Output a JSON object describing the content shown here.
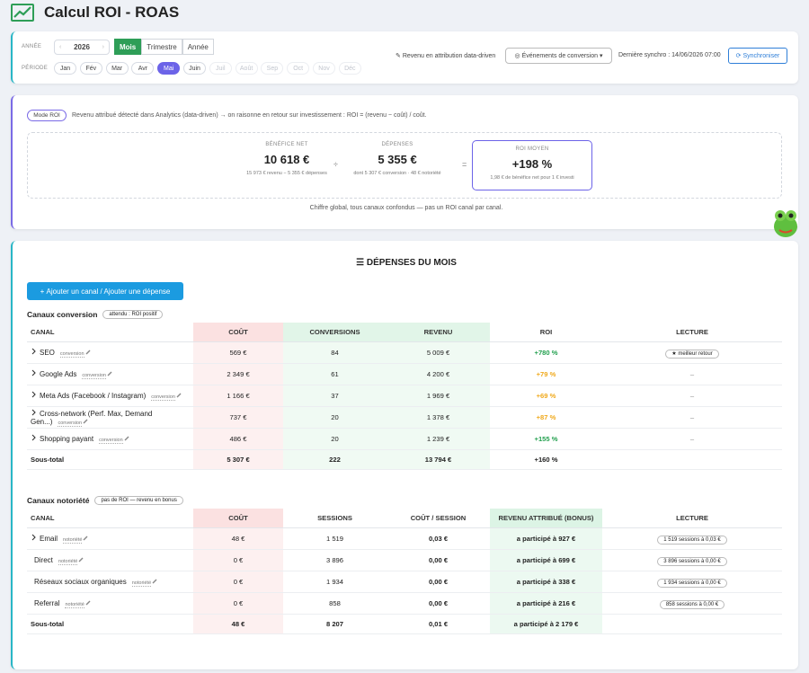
{
  "header": {
    "title": "Calcul ROI - ROAS"
  },
  "filters": {
    "year_label": "ANNÉE",
    "year": "2026",
    "prev": "‹",
    "next": "›",
    "period_label": "PÉRIODE",
    "modes": [
      "Mois",
      "Trimestre",
      "Année"
    ],
    "active_mode": 0,
    "months": [
      "Jan",
      "Fév",
      "Mar",
      "Avr",
      "Mai",
      "Juin",
      "Juil",
      "Août",
      "Sep",
      "Oct",
      "Nov",
      "Déc"
    ],
    "active_month": 4,
    "available_months": 6,
    "attribution": "Revenu en attribution data-driven",
    "events_dropdown": "Événements de conversion",
    "sync_info": "Dernière synchro : 14/06/2026 07:00",
    "sync_button": "Synchroniser"
  },
  "roi": {
    "badge": "Mode ROI",
    "description": "Revenu attribué détecté dans Analytics (data-driven) → on raisonne en retour sur investissement : ROI = (revenu − coût) / coût.",
    "cards": [
      {
        "label": "BÉNÉFICE NET",
        "value": "10 618 €",
        "note": "15 973 € revenu − 5 355 € dépenses"
      },
      {
        "label": "DÉPENSES",
        "value": "5 355 €",
        "note": "dont 5 307 € conversion · 48 € notoriété"
      },
      {
        "label": "ROI MOYEN",
        "value": "+198 %",
        "note": "1,98 € de bénéfice net pour 1 € investi"
      }
    ],
    "operators": [
      "÷",
      "="
    ],
    "footnote": "Chiffre global, tous canaux confondus — pas un ROI canal par canal."
  },
  "expenses": {
    "title": "DÉPENSES DU MOIS",
    "add_button": "Ajouter un canal / Ajouter une dépense",
    "conversion": {
      "title": "Canaux conversion",
      "badge": "attendu : ROI positif",
      "headers": [
        "CANAL",
        "COÛT",
        "CONVERSIONS",
        "REVENU",
        "ROI",
        "LECTURE"
      ],
      "rows": [
        {
          "channel": "SEO",
          "tag": "conversion",
          "expandable": true,
          "cells": [
            "569 €",
            "84",
            "5 009 €",
            "+780 %",
            "★ meilleur retour"
          ],
          "roi_color": "#23a04f",
          "lecture_badge": true
        },
        {
          "channel": "Google Ads",
          "tag": "conversion",
          "expandable": true,
          "cells": [
            "2 349 €",
            "61",
            "4 200 €",
            "+79 %",
            "–"
          ],
          "roi_color": "#f0a91c",
          "lecture_badge": false
        },
        {
          "channel": "Meta Ads (Facebook / Instagram)",
          "tag": "conversion",
          "expandable": true,
          "cells": [
            "1 166 €",
            "37",
            "1 969 €",
            "+69 %",
            "–"
          ],
          "roi_color": "#f0a91c",
          "lecture_badge": false
        },
        {
          "channel": "Cross-network (Perf. Max, Demand Gen...)",
          "tag": "conversion",
          "expandable": true,
          "cells": [
            "737 €",
            "20",
            "1 378 €",
            "+87 %",
            "–"
          ],
          "roi_color": "#f0a91c",
          "lecture_badge": false
        },
        {
          "channel": "Shopping payant",
          "tag": "conversion",
          "expandable": true,
          "cells": [
            "486 €",
            "20",
            "1 239 €",
            "+155 %",
            "–"
          ],
          "roi_color": "#23a04f",
          "lecture_badge": false
        }
      ],
      "subtotal": {
        "label": "Sous-total",
        "cells": [
          "5 307 €",
          "222",
          "13 794 €",
          "+160 %"
        ]
      }
    },
    "awareness": {
      "title": "Canaux notoriété",
      "badge": "pas de ROI — revenu en bonus",
      "headers": [
        "CANAL",
        "COÛT",
        "SESSIONS",
        "COÛT / SESSION",
        "REVENU ATTRIBUÉ (BONUS)",
        "LECTURE"
      ],
      "rows": [
        {
          "channel": "Email",
          "tag": "notoriété",
          "expandable": true,
          "cells": [
            "48 €",
            "1 519",
            "0,03 €",
            "a participé à 927 €",
            "1 519 sessions à 0,03 €"
          ],
          "lecture_badge": true
        },
        {
          "channel": "Direct",
          "tag": "notoriété",
          "expandable": false,
          "cells": [
            "0 €",
            "3 896",
            "0,00 €",
            "a participé à 699 €",
            "3 896 sessions à 0,00 €"
          ],
          "lecture_badge": true
        },
        {
          "channel": "Réseaux sociaux organiques",
          "tag": "notoriété",
          "expandable": false,
          "cells": [
            "0 €",
            "1 934",
            "0,00 €",
            "a participé à 338 €",
            "1 934 sessions à 0,00 €"
          ],
          "lecture_badge": true
        },
        {
          "channel": "Referral",
          "tag": "notoriété",
          "expandable": false,
          "cells": [
            "0 €",
            "858",
            "0,00 €",
            "a participé à 216 €",
            "858 sessions à 0,00 €"
          ],
          "lecture_badge": true
        }
      ],
      "subtotal": {
        "label": "Sous-total",
        "cells": [
          "48 €",
          "8 207",
          "0,01 €",
          "a participé à 2 179 €"
        ]
      }
    }
  }
}
